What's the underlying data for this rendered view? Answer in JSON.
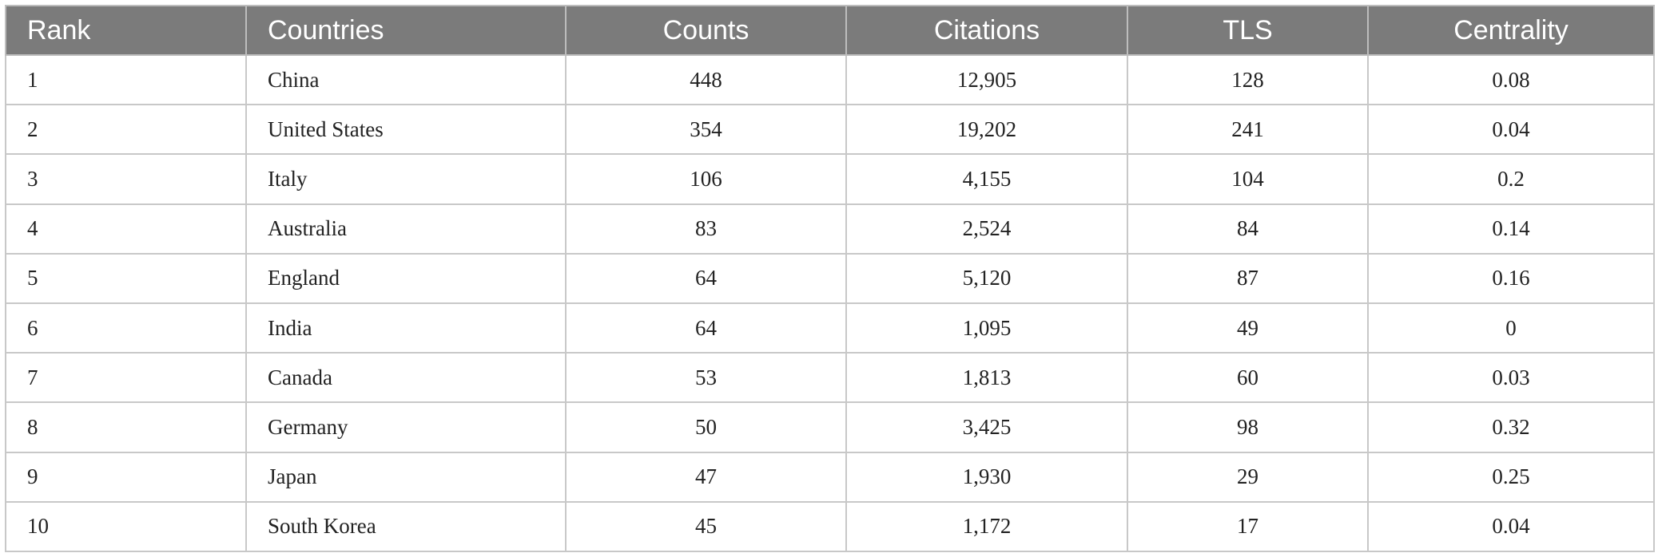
{
  "table": {
    "headers": [
      "Rank",
      "Countries",
      "Counts",
      "Citations",
      "TLS",
      "Centrality"
    ],
    "rows": [
      [
        "1",
        "China",
        "448",
        "12,905",
        "128",
        "0.08"
      ],
      [
        "2",
        "United States",
        "354",
        "19,202",
        "241",
        "0.04"
      ],
      [
        "3",
        "Italy",
        "106",
        "4,155",
        "104",
        "0.2"
      ],
      [
        "4",
        "Australia",
        "83",
        "2,524",
        "84",
        "0.14"
      ],
      [
        "5",
        "England",
        "64",
        "5,120",
        "87",
        "0.16"
      ],
      [
        "6",
        "India",
        "64",
        "1,095",
        "49",
        "0"
      ],
      [
        "7",
        "Canada",
        "53",
        "1,813",
        "60",
        "0.03"
      ],
      [
        "8",
        "Germany",
        "50",
        "3,425",
        "98",
        "0.32"
      ],
      [
        "9",
        "Japan",
        "47",
        "1,930",
        "29",
        "0.25"
      ],
      [
        "10",
        "South Korea",
        "45",
        "1,172",
        "17",
        "0.04"
      ]
    ]
  }
}
